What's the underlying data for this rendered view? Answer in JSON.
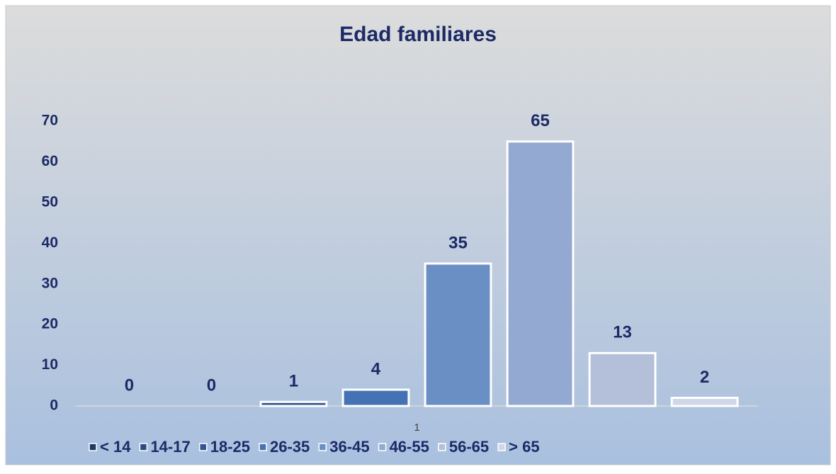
{
  "chart_data": {
    "type": "bar",
    "title": "Edad familiares",
    "categories": [
      "1"
    ],
    "series": [
      {
        "name": "< 14",
        "color": "#1f3864",
        "values": [
          0
        ]
      },
      {
        "name": "14-17",
        "color": "#2a4a86",
        "values": [
          0
        ]
      },
      {
        "name": "18-25",
        "color": "#2f5597",
        "values": [
          1
        ]
      },
      {
        "name": "26-35",
        "color": "#4472b4",
        "values": [
          4
        ]
      },
      {
        "name": "36-45",
        "color": "#6a8fc5",
        "values": [
          35
        ]
      },
      {
        "name": "46-55",
        "color": "#93a9d1",
        "values": [
          65
        ]
      },
      {
        "name": "56-65",
        "color": "#b4c0da",
        "values": [
          13
        ]
      },
      {
        "name": "> 65",
        "color": "#cfd7e8",
        "values": [
          2
        ]
      }
    ],
    "ylim": [
      0,
      70
    ],
    "yticks": [
      0,
      10,
      20,
      30,
      40,
      50,
      60,
      70
    ],
    "grid": false,
    "legend": "bottom"
  }
}
